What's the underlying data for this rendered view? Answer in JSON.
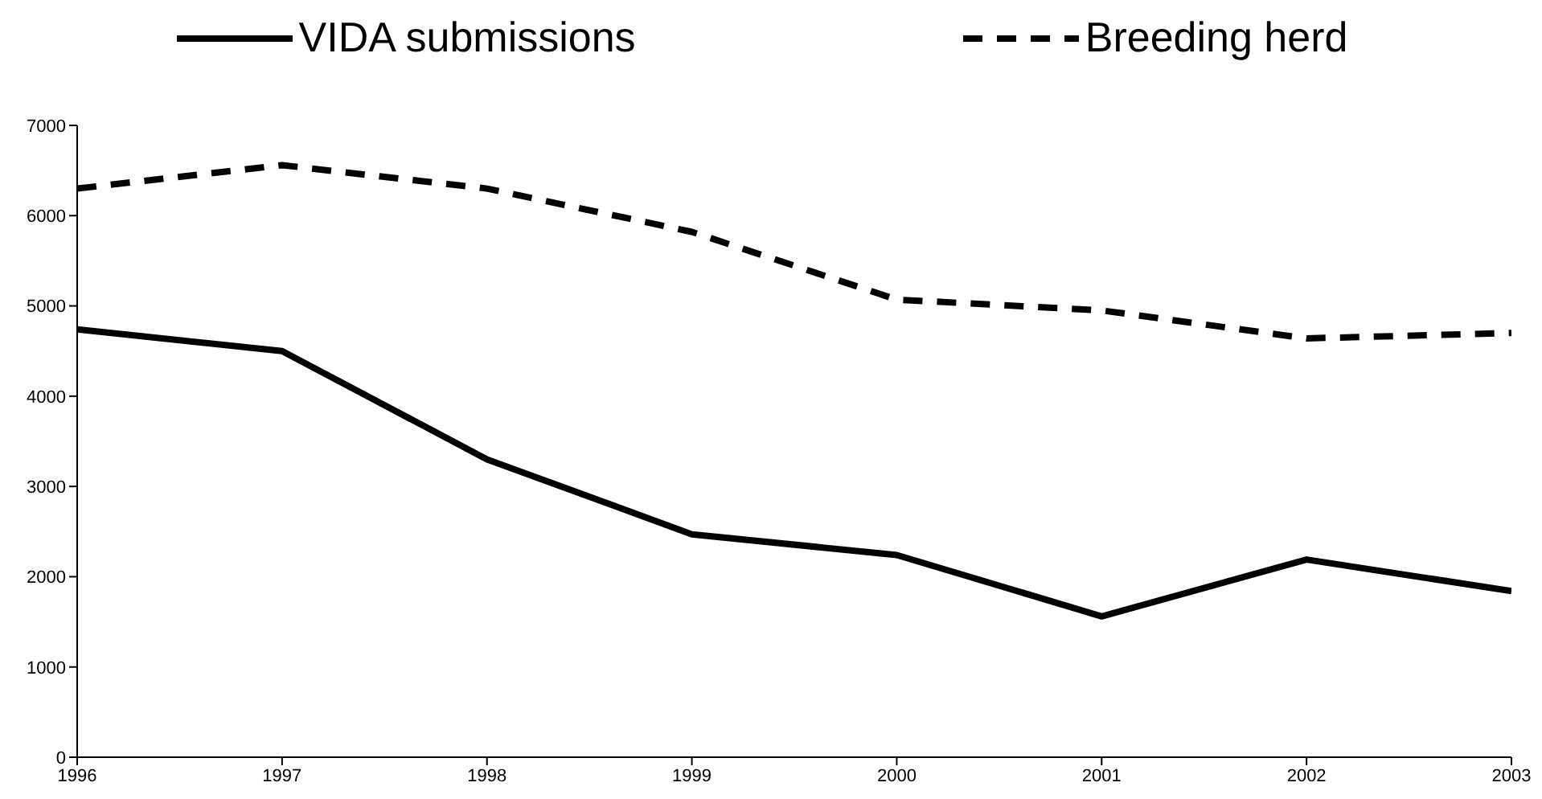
{
  "chart_data": {
    "type": "line",
    "x": [
      1996,
      1997,
      1998,
      1999,
      2000,
      2001,
      2002,
      2003
    ],
    "xlim": [
      1996,
      2003
    ],
    "xticks": [
      1996,
      1997,
      1998,
      1999,
      2000,
      2001,
      2002,
      2003
    ],
    "ylim": [
      0,
      7000
    ],
    "yticks": [
      0,
      1000,
      2000,
      3000,
      4000,
      5000,
      6000,
      7000
    ],
    "grid": false,
    "legend": "top",
    "marker": "none",
    "series": [
      {
        "name": "VIDA submissions",
        "color": "#000000",
        "line_style": "solid",
        "values": [
          4740,
          4500,
          3300,
          2470,
          2240,
          1560,
          2190,
          1840
        ]
      },
      {
        "name": "Breeding herd",
        "color": "#000000",
        "line_style": "dashed",
        "values": [
          6300,
          6560,
          6300,
          5820,
          5070,
          4950,
          4640,
          4700
        ]
      }
    ]
  }
}
